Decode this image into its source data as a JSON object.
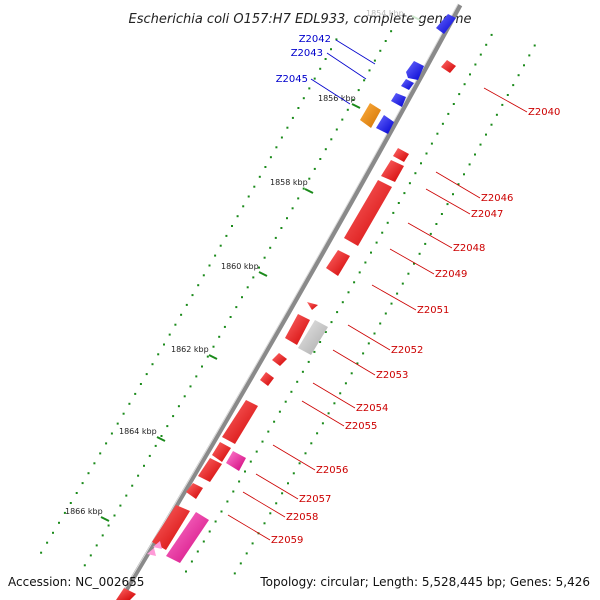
{
  "title": "Escherichia coli O157:H7 EDL933, complete genome",
  "footer": {
    "accession": "Accession: NC_002655",
    "topology": "Topology: circular; Length: 5,528,445 bp; Genes: 5,426"
  },
  "ticks": [
    "1854 kbp",
    "1856 kbp",
    "1858 kbp",
    "1860 kbp",
    "1862 kbp",
    "1864 kbp",
    "1866 kbp"
  ],
  "genes": {
    "blue": [
      "Z2042",
      "Z2043",
      "Z2045"
    ],
    "red": [
      "Z2040",
      "Z2046",
      "Z2047",
      "Z2048",
      "Z2049",
      "Z2051",
      "Z2052",
      "Z2053",
      "Z2054",
      "Z2055",
      "Z2056",
      "Z2057",
      "Z2058",
      "Z2059"
    ]
  },
  "colors": {
    "blue_gene": "#1a1aff",
    "red_gene": "#ff1a1a",
    "orange_gene": "#f08c00",
    "pink_gene": "#ff1aa0",
    "gray_gene": "#c8c8c8",
    "backbone": "#888888",
    "dots": "#1a8a1a",
    "blue_label": "#0000cc",
    "red_label": "#cc0000"
  }
}
